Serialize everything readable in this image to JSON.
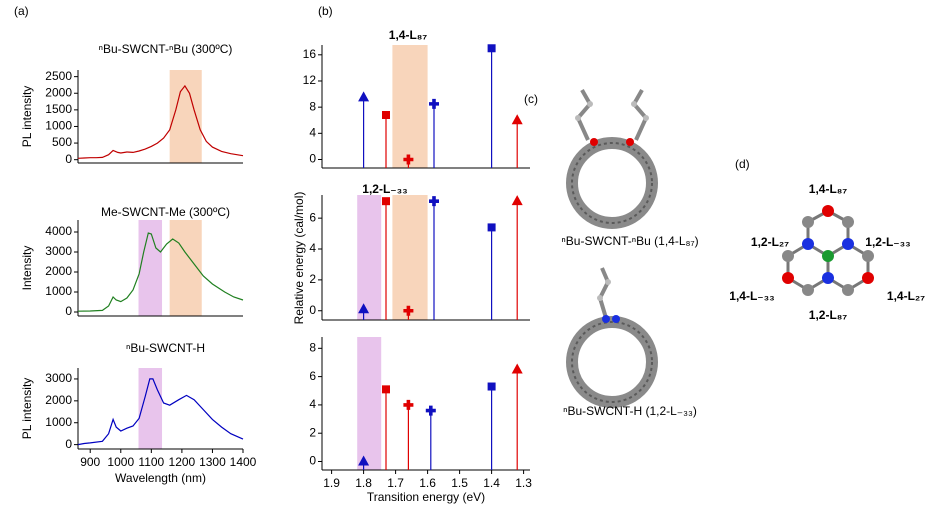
{
  "panel_labels": [
    "(a)",
    "(b)",
    "(c)",
    "(d)"
  ],
  "chart_data": [
    {
      "type": "line",
      "title": "ⁿBu-SWCNT-ⁿBu (300ºC)",
      "title_color": "#e05a5a",
      "ylabel": "PL intensity",
      "xlim": [
        860,
        1400
      ],
      "ylim": [
        -100,
        2700
      ],
      "yticks": [
        0,
        500,
        1000,
        1500,
        2000,
        2500
      ],
      "bands": [
        {
          "xlim": [
            1160,
            1265
          ],
          "color": "#f8d5bb"
        }
      ],
      "series": [
        {
          "color": "#c00000",
          "x": [
            860,
            880,
            900,
            920,
            940,
            960,
            975,
            990,
            1000,
            1020,
            1040,
            1060,
            1080,
            1100,
            1120,
            1140,
            1160,
            1180,
            1195,
            1210,
            1225,
            1240,
            1260,
            1280,
            1300,
            1330,
            1360,
            1400
          ],
          "values": [
            40,
            50,
            60,
            60,
            70,
            150,
            280,
            220,
            200,
            230,
            220,
            260,
            320,
            400,
            500,
            650,
            900,
            1500,
            2050,
            2220,
            2000,
            1500,
            900,
            550,
            380,
            250,
            180,
            120
          ]
        }
      ]
    },
    {
      "type": "line",
      "title": "Me-SWCNT-Me (300ºC)",
      "title_color": "#2e8b2e",
      "ylabel": "Intensity",
      "xlim": [
        860,
        1400
      ],
      "ylim": [
        -200,
        4600
      ],
      "yticks": [
        0,
        1000,
        2000,
        3000,
        4000
      ],
      "bands": [
        {
          "xlim": [
            1160,
            1265
          ],
          "color": "#f8d5bb"
        },
        {
          "xlim": [
            1058,
            1135
          ],
          "color": "#e8c4ec"
        }
      ],
      "series": [
        {
          "color": "#208020",
          "x": [
            860,
            900,
            940,
            960,
            975,
            985,
            1000,
            1020,
            1040,
            1060,
            1075,
            1090,
            1100,
            1115,
            1130,
            1150,
            1170,
            1190,
            1210,
            1240,
            1270,
            1300,
            1340,
            1370,
            1400
          ],
          "values": [
            40,
            50,
            80,
            300,
            750,
            600,
            520,
            700,
            1100,
            1900,
            3000,
            3950,
            3900,
            3200,
            3000,
            3400,
            3650,
            3450,
            3000,
            2400,
            1800,
            1400,
            1000,
            750,
            600
          ]
        }
      ]
    },
    {
      "type": "line",
      "title": "ⁿBu-SWCNT-H",
      "title_color": "#1a1ae0",
      "ylabel": "PL intensity",
      "xlabel": "Wavelength (nm)",
      "xlim": [
        860,
        1400
      ],
      "ylim": [
        -200,
        3500
      ],
      "yticks": [
        0,
        1000,
        2000,
        3000
      ],
      "xticks": [
        900,
        1000,
        1100,
        1200,
        1300,
        1400
      ],
      "bands": [
        {
          "xlim": [
            1058,
            1135
          ],
          "color": "#e8c4ec"
        }
      ],
      "series": [
        {
          "color": "#0000c0",
          "x": [
            860,
            880,
            900,
            940,
            960,
            975,
            985,
            1000,
            1020,
            1040,
            1060,
            1080,
            1095,
            1105,
            1120,
            1140,
            1160,
            1190,
            1215,
            1240,
            1270,
            1300,
            1330,
            1360,
            1400
          ],
          "values": [
            0,
            50,
            80,
            150,
            500,
            1150,
            800,
            620,
            750,
            850,
            1200,
            2200,
            3000,
            3000,
            2500,
            1900,
            1800,
            2050,
            2250,
            2050,
            1600,
            1150,
            800,
            500,
            250
          ]
        }
      ]
    },
    {
      "type": "scatter",
      "xlim": [
        1.93,
        1.28
      ],
      "ylim": [
        -1.3,
        17.5
      ],
      "yticks": [
        0,
        4,
        8,
        12,
        16
      ],
      "bands": [
        {
          "xlim": [
            1.71,
            1.6
          ],
          "color": "#f8d5bb"
        }
      ],
      "annotations": [
        {
          "text": "1,4-L₈₇",
          "color": "#e00000"
        }
      ],
      "series": [
        {
          "color": "#1010c0",
          "marker": "triangle",
          "x": [
            1.8
          ],
          "values": [
            9.5
          ]
        },
        {
          "color": "#e00000",
          "marker": "square",
          "x": [
            1.73
          ],
          "values": [
            6.8
          ]
        },
        {
          "color": "#e00000",
          "marker": "cross",
          "x": [
            1.66
          ],
          "values": [
            0
          ]
        },
        {
          "color": "#1010c0",
          "marker": "cross",
          "x": [
            1.58
          ],
          "values": [
            8.5
          ]
        },
        {
          "color": "#1010c0",
          "marker": "square",
          "x": [
            1.4
          ],
          "values": [
            17
          ]
        },
        {
          "color": "#e00000",
          "marker": "triangle",
          "x": [
            1.32
          ],
          "values": [
            6
          ]
        }
      ]
    },
    {
      "type": "scatter",
      "ylabel": "Relative energy (cal/mol)",
      "xlim": [
        1.93,
        1.28
      ],
      "ylim": [
        -0.6,
        7.5
      ],
      "yticks": [
        0,
        2,
        4,
        6
      ],
      "bands": [
        {
          "xlim": [
            1.71,
            1.6
          ],
          "color": "#f8d5bb"
        },
        {
          "xlim": [
            1.82,
            1.745
          ],
          "color": "#e8c4ec"
        }
      ],
      "annotations": [
        {
          "text": "1,2-L₋₃₃",
          "color": "#1a50e0"
        }
      ],
      "series": [
        {
          "color": "#1010c0",
          "marker": "triangle",
          "x": [
            1.8
          ],
          "values": [
            0.1
          ]
        },
        {
          "color": "#e00000",
          "marker": "square",
          "x": [
            1.73
          ],
          "values": [
            7.1
          ]
        },
        {
          "color": "#e00000",
          "marker": "cross",
          "x": [
            1.66
          ],
          "values": [
            0
          ]
        },
        {
          "color": "#1010c0",
          "marker": "cross",
          "x": [
            1.58
          ],
          "values": [
            7.1
          ]
        },
        {
          "color": "#1010c0",
          "marker": "square",
          "x": [
            1.4
          ],
          "values": [
            5.4
          ]
        },
        {
          "color": "#e00000",
          "marker": "triangle",
          "x": [
            1.32
          ],
          "values": [
            7.1
          ]
        }
      ]
    },
    {
      "type": "scatter",
      "xlabel": "Transition energy (eV)",
      "xlim": [
        1.93,
        1.28
      ],
      "ylim": [
        -0.6,
        8.8
      ],
      "yticks": [
        0,
        2,
        4,
        6,
        8
      ],
      "xticks": [
        1.9,
        1.8,
        1.7,
        1.6,
        1.5,
        1.4,
        1.3
      ],
      "bands": [
        {
          "xlim": [
            1.82,
            1.745
          ],
          "color": "#e8c4ec"
        }
      ],
      "series": [
        {
          "color": "#1010c0",
          "marker": "triangle",
          "x": [
            1.8
          ],
          "values": [
            0
          ]
        },
        {
          "color": "#e00000",
          "marker": "square",
          "x": [
            1.73
          ],
          "values": [
            5.1
          ]
        },
        {
          "color": "#e00000",
          "marker": "cross",
          "x": [
            1.66
          ],
          "values": [
            4
          ]
        },
        {
          "color": "#1010c0",
          "marker": "cross",
          "x": [
            1.59
          ],
          "values": [
            3.6
          ]
        },
        {
          "color": "#1010c0",
          "marker": "square",
          "x": [
            1.4
          ],
          "values": [
            5.3
          ]
        },
        {
          "color": "#e00000",
          "marker": "triangle",
          "x": [
            1.32
          ],
          "values": [
            6.5
          ]
        }
      ]
    }
  ],
  "panel_c": {
    "captions": [
      "ⁿBu-SWCNT-ⁿBu (1,4-L₈₇)",
      "ⁿBu-SWCNT-H (1,2-L₋₃₃)"
    ]
  },
  "panel_d": {
    "labels": [
      {
        "text": "1,4-L₈₇",
        "color": "#e00000"
      },
      {
        "text": "1,2-L₂₇",
        "color": "#1a50e0"
      },
      {
        "text": "1,2-L₋₃₃",
        "color": "#1a50e0"
      },
      {
        "text": "1,4-L₋₃₃",
        "color": "#e00000"
      },
      {
        "text": "1,4-L₂₇",
        "color": "#e00000"
      },
      {
        "text": "1,2-L₈₇",
        "color": "#1a50e0"
      }
    ]
  }
}
